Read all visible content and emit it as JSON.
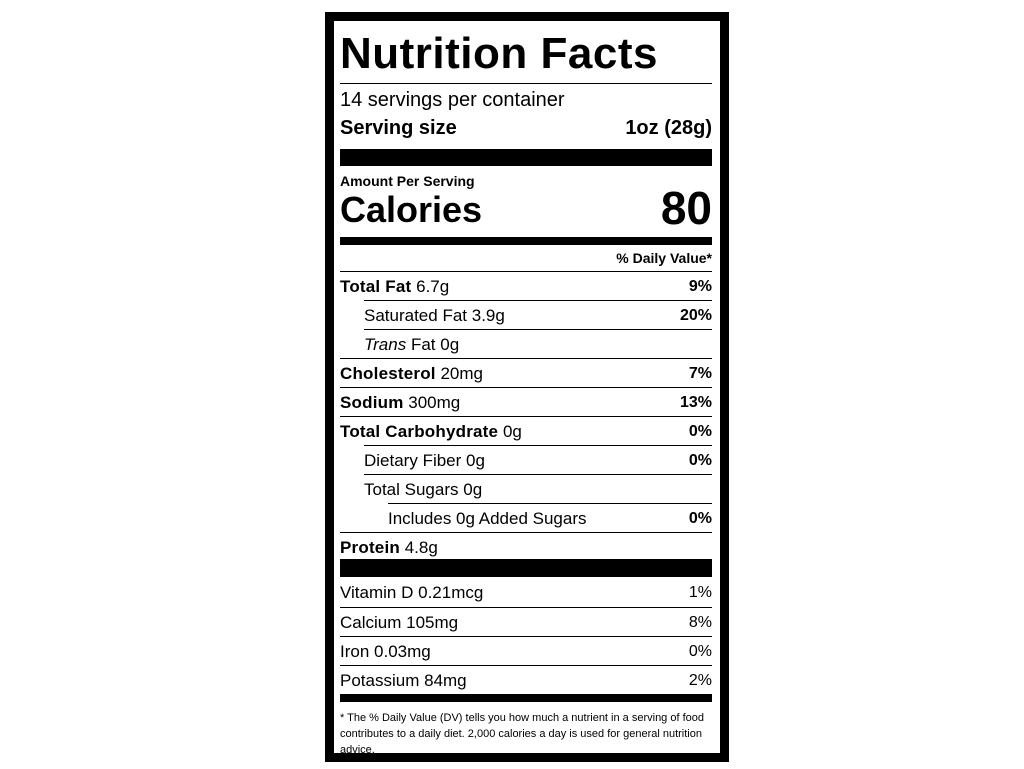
{
  "title": "Nutrition Facts",
  "servings_per_container": "14 servings per container",
  "serving_size_label": "Serving size",
  "serving_size_value": "1oz (28g)",
  "amount_per_serving": "Amount Per Serving",
  "calories_label": "Calories",
  "calories_value": "80",
  "daily_value_header": "% Daily Value*",
  "nutrients": [
    {
      "name": "Total Fat",
      "amount": "6.7g",
      "dv": "9%"
    },
    {
      "name": "Saturated Fat",
      "amount": "3.9g",
      "dv": "20%"
    },
    {
      "name": "Trans",
      "name2": "Fat",
      "amount": "0g",
      "dv": ""
    },
    {
      "name": "Cholesterol",
      "amount": "20mg",
      "dv": "7%"
    },
    {
      "name": "Sodium",
      "amount": "300mg",
      "dv": "13%"
    },
    {
      "name": "Total Carbohydrate",
      "amount": "0g",
      "dv": "0%"
    },
    {
      "name": "Dietary Fiber",
      "amount": "0g",
      "dv": "0%"
    },
    {
      "name": "Total Sugars",
      "amount": "0g",
      "dv": ""
    },
    {
      "name": "Includes 0g Added Sugars",
      "amount": "",
      "dv": "0%"
    },
    {
      "name": "Protein",
      "amount": "4.8g",
      "dv": ""
    }
  ],
  "vitamins": [
    {
      "name": "Vitamin D",
      "amount": "0.21mcg",
      "dv": "1%"
    },
    {
      "name": "Calcium",
      "amount": "105mg",
      "dv": "8%"
    },
    {
      "name": "Iron",
      "amount": "0.03mg",
      "dv": "0%"
    },
    {
      "name": "Potassium",
      "amount": "84mg",
      "dv": "2%"
    }
  ],
  "footnote": "* The % Daily Value (DV) tells you how much a nutrient in a serving of food contributes to a daily diet. 2,000 calories a day is used for general nutrition advice."
}
